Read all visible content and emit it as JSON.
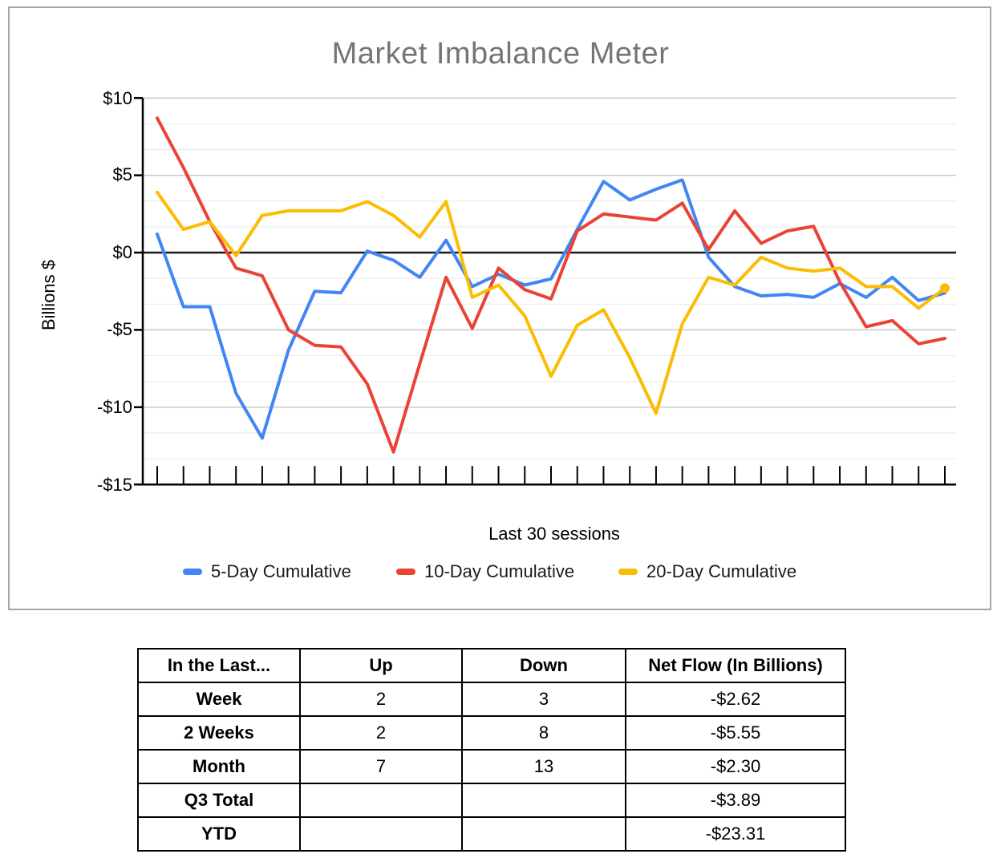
{
  "chart": {
    "title": "Market Imbalance Meter",
    "title_color": "#757575",
    "y_axis_title": "Billions $",
    "x_axis_label": "Last 30 sessions",
    "y_tick_labels": [
      "$10",
      "$5",
      "$0",
      "-$5",
      "-$10",
      "-$15"
    ],
    "legend": [
      {
        "label": "5-Day Cumulative",
        "color": "#4285F4"
      },
      {
        "label": "10-Day Cumulative",
        "color": "#EA4335"
      },
      {
        "label": "20-Day Cumulative",
        "color": "#FBBC04"
      }
    ]
  },
  "chart_data": {
    "type": "line",
    "title": "Market Imbalance Meter",
    "xlabel": "Last 30 sessions",
    "ylabel": "Billions $",
    "ylim": [
      -15,
      10
    ],
    "y_major_ticks": [
      10,
      5,
      0,
      -5,
      -10,
      -15
    ],
    "minor_gridlines_per_major": 2,
    "grid": true,
    "legend_position": "bottom",
    "x": [
      1,
      2,
      3,
      4,
      5,
      6,
      7,
      8,
      9,
      10,
      11,
      12,
      13,
      14,
      15,
      16,
      17,
      18,
      19,
      20,
      21,
      22,
      23,
      24,
      25,
      26,
      27,
      28,
      29,
      30,
      31
    ],
    "series": [
      {
        "name": "5-Day Cumulative",
        "color": "#4285F4",
        "end_marker": false,
        "values": [
          1.2,
          -3.5,
          -3.5,
          -9.1,
          -12.0,
          -6.3,
          -2.5,
          -2.6,
          0.1,
          -0.5,
          -1.6,
          0.8,
          -2.2,
          -1.4,
          -2.1,
          -1.7,
          1.5,
          4.6,
          3.4,
          4.1,
          4.7,
          -0.3,
          -2.2,
          -2.8,
          -2.7,
          -2.9,
          -2.0,
          -2.9,
          -1.6,
          -3.1,
          -2.62
        ]
      },
      {
        "name": "10-Day Cumulative",
        "color": "#EA4335",
        "end_marker": false,
        "values": [
          8.7,
          5.5,
          2.0,
          -1.0,
          -1.5,
          -5.0,
          -6.0,
          -6.1,
          -8.5,
          -12.9,
          -7.2,
          -1.6,
          -4.9,
          -1.0,
          -2.4,
          -3.0,
          1.4,
          2.5,
          2.3,
          2.1,
          3.2,
          0.2,
          2.7,
          0.6,
          1.4,
          1.7,
          -1.9,
          -4.8,
          -4.4,
          -5.9,
          -5.55
        ]
      },
      {
        "name": "20-Day Cumulative",
        "color": "#FBBC04",
        "end_marker": true,
        "values": [
          3.9,
          1.5,
          2.0,
          -0.2,
          2.4,
          2.7,
          2.7,
          2.7,
          3.3,
          2.4,
          1.0,
          3.3,
          -2.9,
          -2.1,
          -4.1,
          -8.0,
          -4.7,
          -3.7,
          -6.8,
          -10.4,
          -4.6,
          -1.6,
          -2.1,
          -0.3,
          -1.0,
          -1.2,
          -1.0,
          -2.2,
          -2.2,
          -3.6,
          -2.3
        ]
      }
    ]
  },
  "table": {
    "headers": [
      "In the Last...",
      "Up",
      "Down",
      "Net Flow (In Billions)"
    ],
    "rows": [
      [
        "Week",
        "2",
        "3",
        "-$2.62"
      ],
      [
        "2 Weeks",
        "2",
        "8",
        "-$5.55"
      ],
      [
        "Month",
        "7",
        "13",
        "-$2.30"
      ],
      [
        "Q3 Total",
        "",
        "",
        "-$3.89"
      ],
      [
        "YTD",
        "",
        "",
        "-$23.31"
      ]
    ]
  }
}
